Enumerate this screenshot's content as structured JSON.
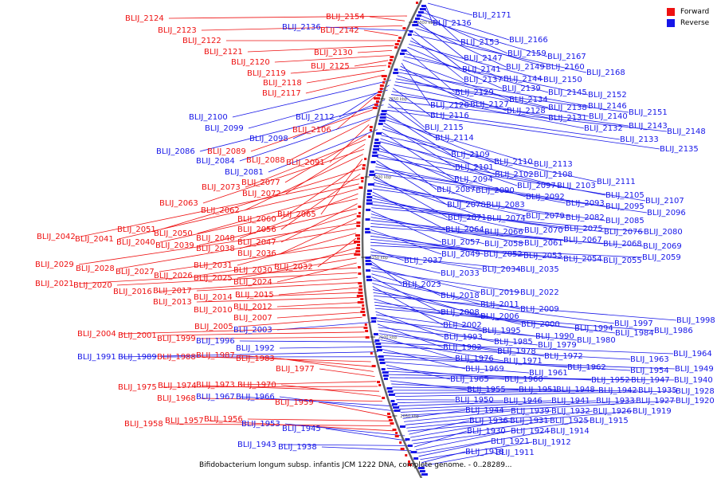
{
  "colors": {
    "forward": "#ee1111",
    "reverse": "#1616e8",
    "backbone": "#666666"
  },
  "legend": {
    "forward": "Forward",
    "reverse": "Reverse"
  },
  "caption": "Bifidobacterium longum subsp. infantis JCM 1222 DNA, complete genome. - 0..28289...",
  "ruler": [
    "2300 kbp",
    "2250 kbp",
    "2200 kbp",
    "2150 kbp",
    "2100 kbp",
    "2050 kbp"
  ],
  "left_labels": [
    {
      "t": "BLIJ_2124",
      "s": "f"
    },
    {
      "t": "BLIJ_2154",
      "s": "f"
    },
    {
      "t": "BLIJ_2123",
      "s": "f"
    },
    {
      "t": "BLIJ_2136",
      "s": "r"
    },
    {
      "t": "BLIJ_2142",
      "s": "f"
    },
    {
      "t": "BLIJ_2122",
      "s": "f"
    },
    {
      "t": "BLIJ_2121",
      "s": "f"
    },
    {
      "t": "BLIJ_2130",
      "s": "f"
    },
    {
      "t": "BLIJ_2120",
      "s": "f"
    },
    {
      "t": "BLIJ_2125",
      "s": "f"
    },
    {
      "t": "BLIJ_2119",
      "s": "f"
    },
    {
      "t": "BLIJ_2118",
      "s": "f"
    },
    {
      "t": "BLIJ_2117",
      "s": "f"
    },
    {
      "t": "BLIJ_2100",
      "s": "r"
    },
    {
      "t": "BLIJ_2112",
      "s": "r"
    },
    {
      "t": "BLIJ_2099",
      "s": "r"
    },
    {
      "t": "BLIJ_2106",
      "s": "f"
    },
    {
      "t": "BLIJ_2098",
      "s": "r"
    },
    {
      "t": "BLIJ_2086",
      "s": "r"
    },
    {
      "t": "BLIJ_2089",
      "s": "f"
    },
    {
      "t": "BLIJ_2084",
      "s": "r"
    },
    {
      "t": "BLIJ_2088",
      "s": "f"
    },
    {
      "t": "BLIJ_2091",
      "s": "f"
    },
    {
      "t": "BLIJ_2081",
      "s": "r"
    },
    {
      "t": "BLIJ_2077",
      "s": "f"
    },
    {
      "t": "BLIJ_2073",
      "s": "f"
    },
    {
      "t": "BLIJ_2072",
      "s": "f"
    },
    {
      "t": "BLIJ_2063",
      "s": "f"
    },
    {
      "t": "BLIJ_2062",
      "s": "f"
    },
    {
      "t": "BLIJ_2065",
      "s": "f"
    },
    {
      "t": "BLIJ_2060",
      "s": "f"
    },
    {
      "t": "BLIJ_2051",
      "s": "f"
    },
    {
      "t": "BLIJ_2056",
      "s": "f"
    },
    {
      "t": "BLIJ_2042",
      "s": "f"
    },
    {
      "t": "BLIJ_2041",
      "s": "f"
    },
    {
      "t": "BLIJ_2050",
      "s": "f"
    },
    {
      "t": "BLIJ_2048",
      "s": "f"
    },
    {
      "t": "BLIJ_2040",
      "s": "f"
    },
    {
      "t": "BLIJ_2047",
      "s": "f"
    },
    {
      "t": "BLIJ_2039",
      "s": "f"
    },
    {
      "t": "BLIJ_2038",
      "s": "f"
    },
    {
      "t": "BLIJ_2036",
      "s": "f"
    },
    {
      "t": "BLIJ_2029",
      "s": "f"
    },
    {
      "t": "BLIJ_2028",
      "s": "f"
    },
    {
      "t": "BLIJ_2031",
      "s": "f"
    },
    {
      "t": "BLIJ_2032",
      "s": "f"
    },
    {
      "t": "BLIJ_2027",
      "s": "f"
    },
    {
      "t": "BLIJ_2030",
      "s": "f"
    },
    {
      "t": "BLIJ_2026",
      "s": "f"
    },
    {
      "t": "BLIJ_2025",
      "s": "f"
    },
    {
      "t": "BLIJ_2024",
      "s": "f"
    },
    {
      "t": "BLIJ_2021",
      "s": "f"
    },
    {
      "t": "BLIJ_2020",
      "s": "f"
    },
    {
      "t": "BLIJ_2016",
      "s": "f"
    },
    {
      "t": "BLIJ_2017",
      "s": "f"
    },
    {
      "t": "BLIJ_2015",
      "s": "f"
    },
    {
      "t": "BLIJ_2014",
      "s": "f"
    },
    {
      "t": "BLIJ_2013",
      "s": "f"
    },
    {
      "t": "BLIJ_2012",
      "s": "f"
    },
    {
      "t": "BLIJ_2010",
      "s": "f"
    },
    {
      "t": "BLIJ_2007",
      "s": "f"
    },
    {
      "t": "BLIJ_2005",
      "s": "f"
    },
    {
      "t": "BLIJ_2003",
      "s": "r"
    },
    {
      "t": "BLIJ_2004",
      "s": "f"
    },
    {
      "t": "BLIJ_2001",
      "s": "f"
    },
    {
      "t": "BLIJ_1999",
      "s": "f"
    },
    {
      "t": "BLIJ_1996",
      "s": "r"
    },
    {
      "t": "BLIJ_1992",
      "s": "r"
    },
    {
      "t": "BLIJ_1991",
      "s": "r"
    },
    {
      "t": "BLIJ_1989",
      "s": "r"
    },
    {
      "t": "BLIJ_1988",
      "s": "f"
    },
    {
      "t": "BLIJ_1987",
      "s": "f"
    },
    {
      "t": "BLIJ_1983",
      "s": "f"
    },
    {
      "t": "BLIJ_1977",
      "s": "f"
    },
    {
      "t": "BLIJ_1973",
      "s": "f"
    },
    {
      "t": "BLIJ_1975",
      "s": "f"
    },
    {
      "t": "BLIJ_1974",
      "s": "f"
    },
    {
      "t": "BLIJ_1970",
      "s": "f"
    },
    {
      "t": "BLIJ_1968",
      "s": "f"
    },
    {
      "t": "BLIJ_1967",
      "s": "r"
    },
    {
      "t": "BLIJ_1966",
      "s": "r"
    },
    {
      "t": "BLIJ_1959",
      "s": "f"
    },
    {
      "t": "BLIJ_1956",
      "s": "f"
    },
    {
      "t": "BLIJ_1958",
      "s": "f"
    },
    {
      "t": "BLIJ_1957",
      "s": "f"
    },
    {
      "t": "BLIJ_1953",
      "s": "r"
    },
    {
      "t": "BLIJ_1945",
      "s": "r"
    },
    {
      "t": "BLIJ_1943",
      "s": "r"
    },
    {
      "t": "BLIJ_1938",
      "s": "r"
    }
  ],
  "right_labels": [
    "BLIJ_2171",
    "BLIJ_2136_",
    "BLIJ_2153",
    "BLIJ_2166",
    "BLIJ_2159",
    "BLIJ_2167",
    "BLIJ_2147",
    "BLIJ_2149",
    "BLIJ_2160",
    "BLIJ_2141",
    "BLIJ_2168",
    "BLIJ_2137",
    "BLIJ_2144",
    "BLIJ_2150",
    "BLIJ_2139",
    "BLIJ_2129",
    "BLIJ_2145",
    "BLIJ_2152",
    "BLIJ_2134",
    "BLIJ_2126",
    "BLIJ_2127",
    "BLIJ_2138",
    "BLIJ_2146",
    "BLIJ_2128",
    "BLIJ_2140",
    "BLIJ_2151",
    "BLIJ_2131",
    "BLIJ_2116",
    "BLIJ_2132",
    "BLIJ_2143",
    "BLIJ_2115",
    "BLIJ_2148",
    "BLIJ_2114",
    "BLIJ_2133",
    "BLIJ_2135",
    "BLIJ_2109",
    "BLIJ_2110",
    "BLIJ_2113",
    "BLIJ_2101",
    "BLIJ_2102",
    "BLIJ_2108",
    "BLIJ_2094",
    "BLIJ_2111",
    "BLIJ_2097",
    "BLIJ_2103",
    "BLIJ_2087",
    "BLIJ_2090",
    "BLIJ_2105",
    "BLIJ_2092",
    "BLIJ_2107",
    "BLIJ_2078",
    "BLIJ_2083",
    "BLIJ_2093",
    "BLIJ_2095",
    "BLIJ_2096",
    "BLIJ_2071",
    "BLIJ_2074",
    "BLIJ_2079",
    "BLIJ_2082",
    "BLIJ_2085",
    "BLIJ_2064",
    "BLIJ_2066",
    "BLIJ_2070",
    "BLIJ_2075",
    "BLIJ_2076",
    "BLIJ_2080",
    "BLIJ_2057",
    "BLIJ_2058",
    "BLIJ_2061",
    "BLIJ_2067",
    "BLIJ_2068",
    "BLIJ_2069",
    "BLIJ_2049",
    "BLIJ_2052",
    "BLIJ_2053",
    "BLIJ_2054",
    "BLIJ_2055",
    "BLIJ_2059",
    "BLIJ_2037",
    "BLIJ_2034",
    "BLIJ_2035",
    "BLIJ_2033",
    "BLIJ_2023",
    "BLIJ_2018",
    "BLIJ_2019",
    "BLIJ_2022",
    "BLIJ_2011",
    "BLIJ_2008",
    "BLIJ_2009",
    "BLIJ_2006",
    "BLIJ_2002",
    "BLIJ_2000",
    "BLIJ_1997",
    "BLIJ_1998",
    "BLIJ_1995",
    "BLIJ_1994",
    "BLIJ_1984",
    "BLIJ_1986",
    "BLIJ_1993",
    "BLIJ_1990",
    "BLIJ_1985",
    "BLIJ_1980",
    "BLIJ_1982",
    "BLIJ_1979",
    "BLIJ_1978",
    "BLIJ_1972",
    "BLIJ_1976",
    "BLIJ_1971",
    "BLIJ_1964",
    "BLIJ_1963",
    "BLIJ_1969",
    "BLIJ_1962",
    "BLIJ_1954",
    "BLIJ_1949",
    "BLIJ_1961",
    "BLIJ_1965",
    "BLIJ_1960",
    "BLIJ_1952",
    "BLIJ_1947",
    "BLIJ_1940",
    "BLIJ_1955",
    "BLIJ_1951",
    "BLIJ_1948",
    "BLIJ_1942",
    "BLIJ_1935",
    "BLIJ_1928",
    "BLIJ_1950",
    "BLIJ_1946",
    "BLIJ_1941",
    "BLIJ_1933",
    "BLIJ_1927",
    "BLIJ_1920",
    "BLIJ_1944",
    "BLIJ_1939",
    "BLIJ_1932",
    "BLIJ_1926",
    "BLIJ_1919",
    "BLIJ_1936",
    "BLIJ_1931",
    "BLIJ_1925",
    "BLIJ_1915",
    "BLIJ_1930",
    "BLIJ_1924",
    "BLIJ_1914",
    "BLIJ_1921",
    "BLIJ_1912",
    "BLIJ_1918",
    "BLIJ_1911"
  ]
}
